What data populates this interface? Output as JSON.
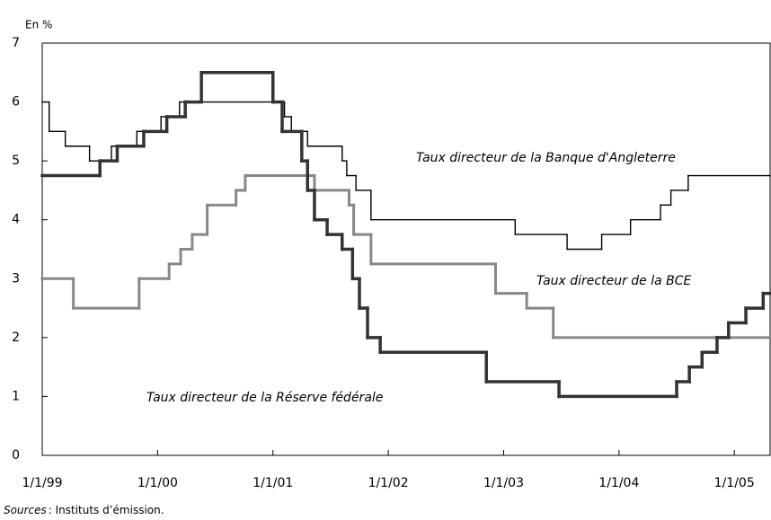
{
  "chart_data": {
    "type": "step",
    "y_unit": "En %",
    "source_label": "Sources",
    "source_text": ": Instituts d’émission.",
    "xlim": [
      1999,
      2005.31
    ],
    "ylim": [
      0,
      7
    ],
    "xticks": [
      {
        "value": 1999,
        "label": "1/1/99"
      },
      {
        "value": 2000,
        "label": "1/1/00"
      },
      {
        "value": 2001,
        "label": "1/1/01"
      },
      {
        "value": 2002,
        "label": "1/1/02"
      },
      {
        "value": 2003,
        "label": "1/1/03"
      },
      {
        "value": 2004,
        "label": "1/1/04"
      },
      {
        "value": 2005,
        "label": "1/1/05"
      }
    ],
    "yticks": [
      0,
      1,
      2,
      3,
      4,
      5,
      6,
      7
    ],
    "series": [
      {
        "name": "Taux directeur de la Banque d'Angleterre",
        "color": "#000000",
        "x": [
          1999,
          1999.06,
          1999.2,
          1999.41,
          1999.6,
          1999.82,
          2000.03,
          2000.19,
          2001.1,
          2001.16,
          2001.3,
          2001.6,
          2001.64,
          2001.72,
          2001.85,
          2003.1,
          2003.55,
          2003.85,
          2004.1,
          2004.36,
          2004.45,
          2004.6
        ],
        "values": [
          6,
          5.5,
          5.25,
          5,
          5.25,
          5.5,
          5.75,
          6,
          5.75,
          5.5,
          5.25,
          5,
          4.75,
          4.5,
          4,
          3.75,
          3.5,
          3.75,
          4,
          4.25,
          4.5,
          4.75
        ]
      },
      {
        "name": "Taux directeur de la BCE",
        "color": "#888888",
        "x": [
          1999,
          1999.27,
          1999.84,
          2000.1,
          2000.2,
          2000.3,
          2000.43,
          2000.68,
          2000.76,
          2001.36,
          2001.66,
          2001.7,
          2001.85,
          2002.93,
          2003.2,
          2003.43
        ],
        "values": [
          3,
          2.5,
          3,
          3.25,
          3.5,
          3.75,
          4.25,
          4.5,
          4.75,
          4.5,
          4.25,
          3.75,
          3.25,
          2.75,
          2.5,
          2
        ]
      },
      {
        "name": "Taux directeur de la Réserve fédérale",
        "color": "#333333",
        "x": [
          1999,
          1999.5,
          1999.65,
          1999.88,
          2000.08,
          2000.24,
          2000.38,
          2001,
          2001.08,
          2001.25,
          2001.3,
          2001.36,
          2001.47,
          2001.6,
          2001.69,
          2001.75,
          2001.82,
          2001.93,
          2002.85,
          2003.48,
          2004.5,
          2004.61,
          2004.72,
          2004.85,
          2004.95,
          2005.1,
          2005.25
        ],
        "values": [
          4.75,
          5,
          5.25,
          5.5,
          5.75,
          6,
          6.5,
          6,
          5.5,
          5,
          4.5,
          4,
          3.75,
          3.5,
          3,
          2.5,
          2,
          1.75,
          1.25,
          1,
          1.25,
          1.5,
          1.75,
          2,
          2.25,
          2.5,
          2.75
        ]
      }
    ]
  }
}
